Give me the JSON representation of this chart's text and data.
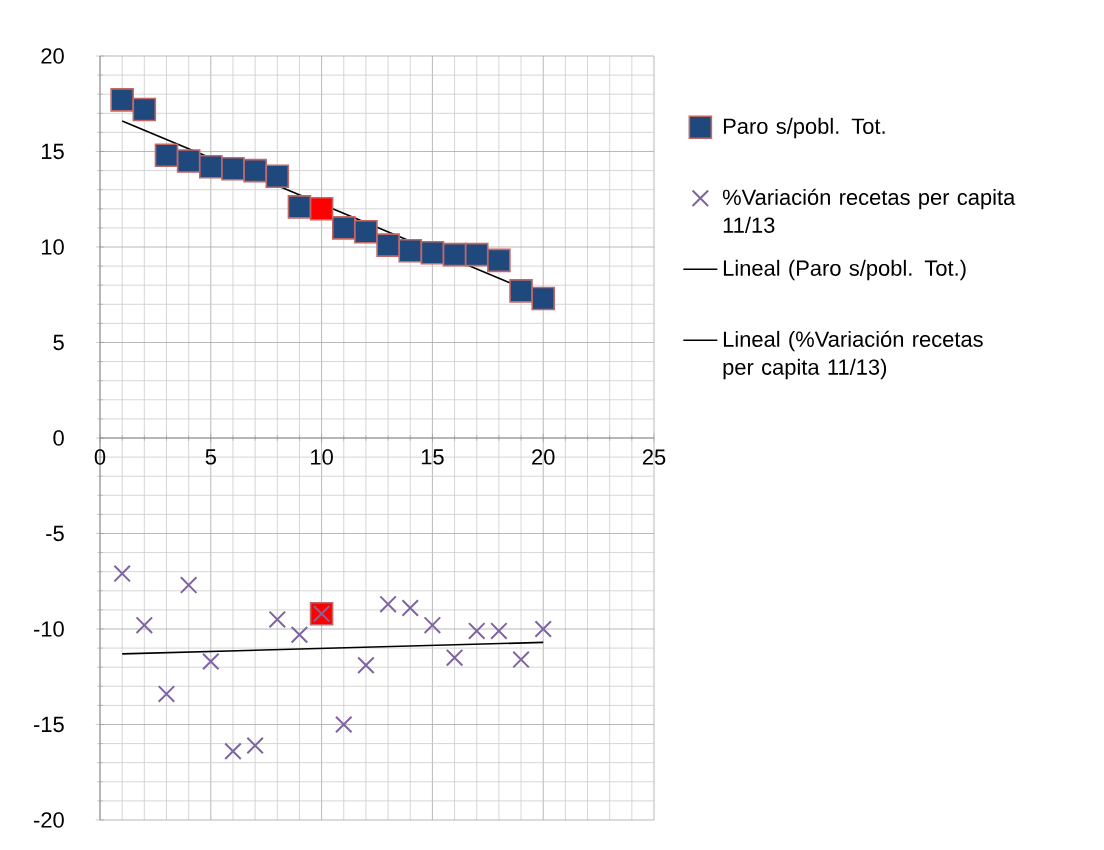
{
  "chart_data": {
    "type": "scatter",
    "xlim": [
      0,
      25
    ],
    "ylim": [
      -20,
      20
    ],
    "xticks": [
      0,
      5,
      10,
      15,
      20,
      25
    ],
    "yticks": [
      -20,
      -15,
      -10,
      -5,
      0,
      5,
      10,
      15,
      20
    ],
    "grid": true,
    "legend": "right",
    "series": [
      {
        "name": "Paro s/pobl. Tot.",
        "marker": "square",
        "color": "#1f497d",
        "colors": [
          "#1f497d",
          "#1f497d",
          "#1f497d",
          "#1f497d",
          "#1f497d",
          "#1f497d",
          "#1f497d",
          "#1f497d",
          "#1f497d",
          "#ff0000",
          "#1f497d",
          "#1f497d",
          "#1f497d",
          "#1f497d",
          "#1f497d",
          "#1f497d",
          "#1f497d",
          "#1f497d",
          "#1f497d",
          "#1f497d"
        ],
        "x": [
          1,
          2,
          3,
          4,
          5,
          6,
          7,
          8,
          9,
          10,
          11,
          12,
          13,
          14,
          15,
          16,
          17,
          18,
          19,
          20
        ],
        "values": [
          17.7,
          17.2,
          14.8,
          14.5,
          14.2,
          14.1,
          14.0,
          13.7,
          12.1,
          12.0,
          11.0,
          10.8,
          10.1,
          9.8,
          9.7,
          9.6,
          9.6,
          9.3,
          7.7,
          7.3
        ]
      },
      {
        "marker": "square",
        "color": "#ff0000",
        "x": [
          10
        ],
        "values": [
          -9.2
        ]
      },
      {
        "name": "%Variación  recetas per capita 11/13",
        "marker": "cross",
        "color": "#8064a2",
        "x": [
          1,
          2,
          3,
          4,
          5,
          6,
          7,
          8,
          9,
          10,
          11,
          12,
          13,
          14,
          15,
          16,
          17,
          18,
          19,
          20
        ],
        "values": [
          -7.1,
          -9.8,
          -13.4,
          -7.7,
          -11.7,
          -16.4,
          -16.1,
          -9.5,
          -10.3,
          -9.2,
          -15.0,
          -11.9,
          -8.7,
          -8.9,
          -9.8,
          -11.5,
          -10.1,
          -10.1,
          -11.6,
          -10.0
        ]
      },
      {
        "name": "Lineal (Paro s/pobl. Tot.)",
        "type": "line",
        "line_style": "solid",
        "marker": "none",
        "color": "#000000",
        "x": [
          1,
          20
        ],
        "values": [
          16.6,
          7.4
        ]
      },
      {
        "name": "Lineal (%Variación recetas per capita 11/13)",
        "type": "line",
        "line_style": "solid",
        "marker": "none",
        "color": "#000000",
        "x": [
          1,
          20
        ],
        "values": [
          -11.3,
          -10.7
        ]
      }
    ]
  }
}
